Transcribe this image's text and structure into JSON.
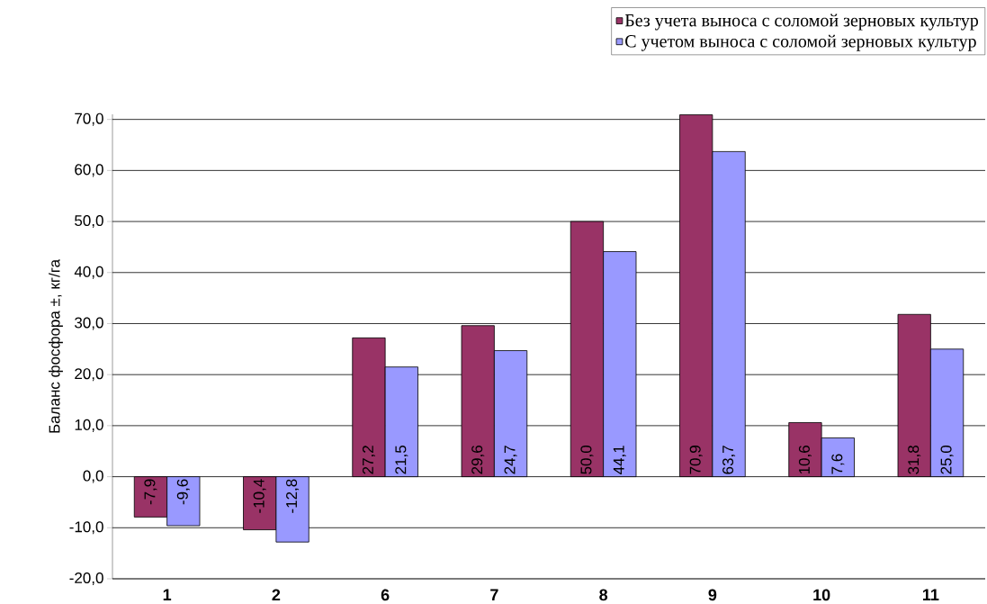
{
  "chart_data": {
    "type": "bar",
    "ylabel": "Баланс фосфора ±, кг/га",
    "categories": [
      "1",
      "2",
      "6",
      "7",
      "8",
      "9",
      "10",
      "11"
    ],
    "series": [
      {
        "name": "Без учета выноса с соломой зерновых культур",
        "color": "#993366",
        "values": [
          -7.9,
          -10.4,
          27.2,
          29.6,
          50.0,
          70.9,
          10.6,
          31.8
        ],
        "value_labels": [
          "-7,9",
          "-10,4",
          "27,2",
          "29,6",
          "50,0",
          "70,9",
          "10,6",
          "31,8"
        ]
      },
      {
        "name": "С учетом выноса с соломой зерновых культур",
        "color": "#9999ff",
        "values": [
          -9.6,
          -12.8,
          21.5,
          24.7,
          44.1,
          63.7,
          7.6,
          25.0
        ],
        "value_labels": [
          "-9,6",
          "-12,8",
          "21,5",
          "24,7",
          "44,1",
          "63,7",
          "7,6",
          "25,0"
        ]
      }
    ],
    "ylim": [
      -20,
      71
    ],
    "yticks": [
      {
        "value": -20,
        "label": "-20,0"
      },
      {
        "value": -10,
        "label": "-10,0"
      },
      {
        "value": 0,
        "label": "0,0"
      },
      {
        "value": 10,
        "label": "10,0"
      },
      {
        "value": 20,
        "label": "20,0"
      },
      {
        "value": 30,
        "label": "30,0"
      },
      {
        "value": 40,
        "label": "40,0"
      },
      {
        "value": 50,
        "label": "50,0"
      },
      {
        "value": 60,
        "label": "60,0"
      },
      {
        "value": 70,
        "label": "70,0"
      }
    ],
    "grid": "y",
    "legend": "top right"
  }
}
